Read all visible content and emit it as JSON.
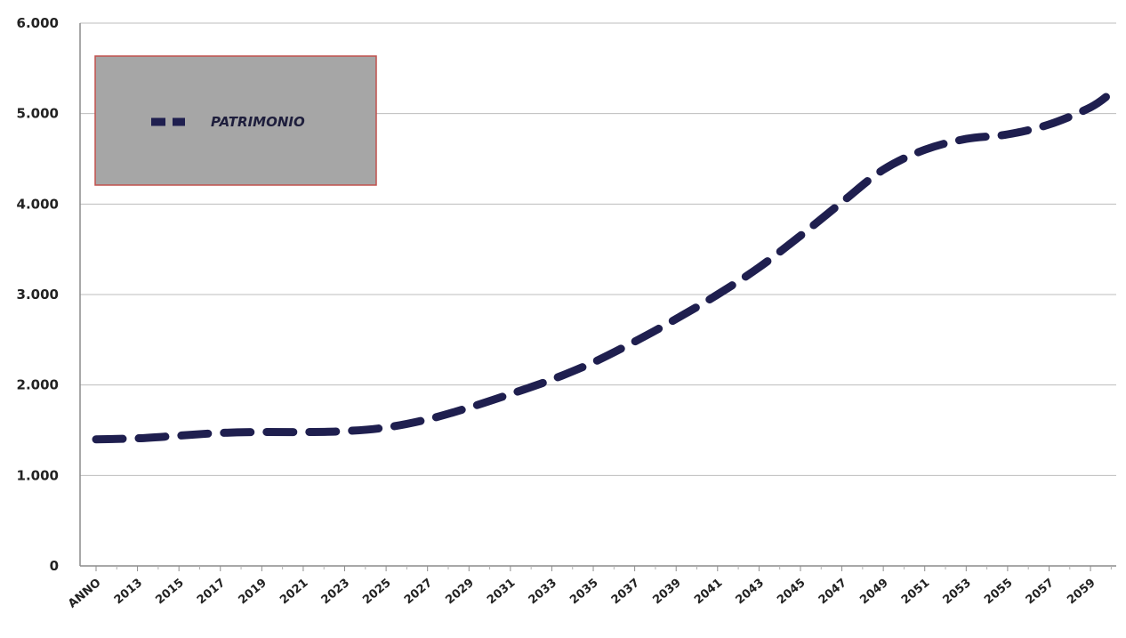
{
  "chart_data": {
    "type": "line",
    "title": "",
    "xlabel": "",
    "ylabel": "",
    "ylim": [
      0,
      6000
    ],
    "y_ticks": [
      "0",
      "1.000",
      "2.000",
      "3.000",
      "4.000",
      "5.000",
      "6.000"
    ],
    "y_tick_values": [
      0,
      1000,
      2000,
      3000,
      4000,
      5000,
      6000
    ],
    "x_tick_labels": [
      "ANNO",
      "2013",
      "2015",
      "2017",
      "2019",
      "2021",
      "2023",
      "2025",
      "2027",
      "2029",
      "2031",
      "2033",
      "2035",
      "2037",
      "2039",
      "2041",
      "2043",
      "2045",
      "2047",
      "2049",
      "2051",
      "2053",
      "2055",
      "2057",
      "2059"
    ],
    "grid": "horizontal",
    "legend": {
      "position": "top-left",
      "background": "#a6a6a6",
      "border": "#c0504d"
    },
    "series": [
      {
        "name": "PATRIMONIO",
        "color": "#1f1f4f",
        "style": "dashed",
        "x": [
          2011,
          2013,
          2015,
          2017,
          2019,
          2021,
          2023,
          2025,
          2027,
          2029,
          2031,
          2033,
          2035,
          2037,
          2039,
          2041,
          2043,
          2045,
          2047,
          2049,
          2051,
          2053,
          2055,
          2057,
          2059,
          2060
        ],
        "values": [
          1400,
          1410,
          1440,
          1470,
          1480,
          1480,
          1490,
          1530,
          1620,
          1750,
          1900,
          2060,
          2250,
          2480,
          2730,
          3000,
          3300,
          3650,
          4020,
          4380,
          4600,
          4720,
          4770,
          4880,
          5070,
          5230
        ]
      }
    ]
  }
}
